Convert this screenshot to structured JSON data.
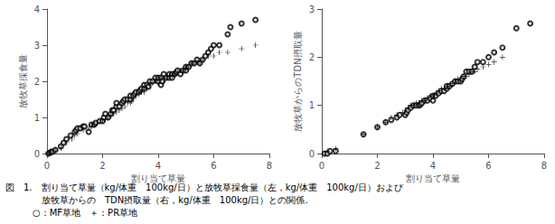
{
  "chart_data": [
    {
      "type": "scatter",
      "xlabel": "割り当て草量",
      "ylabel": "放牧草採食量",
      "xlim": [
        0,
        8
      ],
      "ylim": [
        0,
        4
      ],
      "xticks": [
        0,
        2,
        4,
        6,
        8
      ],
      "yticks": [
        0,
        1,
        2,
        3,
        4
      ],
      "grid": false,
      "annotations": [
        "図　1.　割り当て草量（kg/体重　100kg/日）と放牧草採食量（左，kg/体重　100kg/日）および",
        "　　　　放牧草からの　TDN摂取量（右，kg/体重　100kg/日）との関係.",
        "　　　○：MF草地　＋：PR草地"
      ],
      "series": [
        {
          "marker": "circle",
          "color": "#000000",
          "x": [
            0.05,
            0.1,
            0.15,
            0.2,
            0.3,
            0.5,
            0.6,
            0.7,
            0.85,
            1.0,
            1.05,
            1.1,
            1.2,
            1.3,
            1.35,
            1.5,
            1.6,
            1.7,
            1.75,
            1.9,
            2.0,
            2.05,
            2.1,
            2.2,
            2.3,
            2.35,
            2.4,
            2.5,
            2.5,
            2.6,
            2.7,
            2.75,
            2.8,
            2.9,
            3.0,
            3.0,
            3.1,
            3.15,
            3.2,
            3.3,
            3.35,
            3.4,
            3.5,
            3.5,
            3.6,
            3.65,
            3.7,
            3.8,
            3.9,
            4.0,
            4.0,
            4.1,
            4.1,
            4.15,
            4.2,
            4.3,
            4.4,
            4.4,
            4.5,
            4.5,
            4.6,
            4.65,
            4.7,
            4.8,
            4.9,
            5.0,
            5.0,
            5.1,
            5.2,
            5.3,
            5.4,
            5.5,
            5.6,
            5.7,
            5.8,
            5.9,
            6.0,
            6.2,
            6.5,
            6.6,
            7.0,
            7.5
          ],
          "values": [
            0.0,
            0.02,
            0.05,
            0.05,
            0.1,
            0.2,
            0.3,
            0.4,
            0.5,
            0.6,
            0.65,
            0.7,
            0.7,
            0.75,
            0.75,
            0.6,
            0.8,
            0.8,
            0.85,
            0.9,
            0.9,
            1.0,
            1.1,
            1.0,
            1.1,
            1.2,
            1.2,
            1.3,
            1.4,
            1.3,
            1.4,
            1.45,
            1.5,
            1.5,
            1.5,
            1.6,
            1.6,
            1.65,
            1.7,
            1.7,
            1.75,
            1.8,
            1.8,
            1.9,
            1.9,
            1.85,
            2.0,
            2.0,
            2.1,
            2.0,
            2.1,
            2.1,
            1.9,
            2.0,
            2.2,
            2.1,
            2.1,
            2.2,
            2.2,
            2.1,
            2.2,
            2.25,
            2.3,
            2.2,
            2.3,
            2.3,
            2.4,
            2.4,
            2.5,
            2.5,
            2.6,
            2.5,
            2.6,
            2.7,
            2.8,
            2.9,
            3.0,
            3.0,
            3.3,
            3.5,
            3.6,
            3.7
          ]
        },
        {
          "marker": "plus",
          "color": "#000000",
          "x": [
            0.1,
            0.2,
            0.3,
            0.5,
            0.7,
            0.9,
            1.0,
            1.1,
            1.3,
            1.5,
            1.6,
            1.7,
            1.8,
            2.0,
            2.1,
            2.2,
            2.3,
            2.4,
            2.5,
            2.6,
            2.7,
            2.8,
            2.9,
            3.0,
            3.05,
            3.1,
            3.2,
            3.3,
            3.4,
            3.5,
            3.5,
            3.6,
            3.7,
            3.8,
            3.9,
            4.0,
            4.0,
            4.1,
            4.2,
            4.3,
            4.4,
            4.5,
            4.5,
            4.6,
            4.7,
            4.8,
            4.9,
            5.0,
            5.0,
            5.1,
            5.2,
            5.3,
            5.4,
            5.5,
            5.6,
            5.8,
            6.0,
            6.2,
            6.5,
            7.0,
            7.5
          ],
          "values": [
            0.0,
            0.05,
            0.1,
            0.15,
            0.3,
            0.4,
            0.5,
            0.55,
            0.65,
            0.7,
            0.75,
            0.8,
            0.85,
            0.9,
            0.95,
            1.0,
            1.05,
            1.1,
            1.15,
            1.2,
            1.25,
            1.3,
            1.4,
            1.4,
            1.45,
            1.5,
            1.6,
            1.65,
            1.7,
            1.7,
            1.8,
            1.8,
            1.9,
            1.95,
            2.0,
            1.95,
            2.1,
            2.1,
            2.0,
            2.1,
            2.15,
            2.2,
            2.15,
            2.2,
            2.25,
            2.3,
            2.3,
            2.4,
            2.35,
            2.4,
            2.5,
            2.5,
            2.55,
            2.5,
            2.6,
            2.7,
            2.7,
            2.8,
            2.8,
            2.9,
            3.0
          ]
        }
      ]
    },
    {
      "type": "scatter",
      "xlabel": "割り当て草量",
      "ylabel": "放牧草からのTDN摂取量",
      "xlim": [
        0,
        8
      ],
      "ylim": [
        0,
        3
      ],
      "xticks": [
        0,
        2,
        4,
        6,
        8
      ],
      "yticks": [
        0,
        1,
        2,
        3
      ],
      "grid": false,
      "series": [
        {
          "marker": "circle",
          "color": "#000000",
          "x": [
            0.1,
            0.2,
            0.3,
            0.5,
            1.5,
            2.0,
            2.3,
            2.5,
            2.7,
            2.8,
            3.0,
            3.05,
            3.1,
            3.2,
            3.3,
            3.4,
            3.5,
            3.55,
            3.6,
            3.7,
            3.8,
            3.9,
            4.0,
            4.0,
            4.1,
            4.2,
            4.3,
            4.4,
            4.5,
            4.5,
            4.6,
            4.7,
            4.8,
            4.9,
            5.0,
            5.05,
            5.1,
            5.2,
            5.3,
            5.4,
            5.5,
            5.6,
            5.8,
            6.0,
            6.2,
            6.5,
            7.0,
            7.5
          ],
          "values": [
            0.0,
            0.0,
            0.05,
            0.05,
            0.4,
            0.55,
            0.65,
            0.7,
            0.75,
            0.8,
            0.8,
            0.85,
            0.9,
            0.95,
            1.0,
            1.0,
            1.0,
            1.02,
            1.05,
            1.1,
            1.1,
            1.15,
            1.1,
            1.2,
            1.2,
            1.25,
            1.3,
            1.3,
            1.35,
            1.4,
            1.4,
            1.45,
            1.5,
            1.5,
            1.5,
            1.55,
            1.6,
            1.7,
            1.7,
            1.7,
            1.8,
            1.9,
            1.9,
            2.0,
            2.1,
            2.2,
            2.6,
            2.7
          ]
        },
        {
          "marker": "plus",
          "color": "#000000",
          "x": [
            0.2,
            0.5,
            1.5,
            2.0,
            2.3,
            2.5,
            2.7,
            2.9,
            3.0,
            3.1,
            3.2,
            3.3,
            3.4,
            3.5,
            3.6,
            3.7,
            3.8,
            3.9,
            4.0,
            4.05,
            4.1,
            4.2,
            4.3,
            4.4,
            4.5,
            4.6,
            4.7,
            4.8,
            4.9,
            5.0,
            5.1,
            5.2,
            5.3,
            5.4,
            5.5,
            5.6,
            5.8,
            6.0,
            6.2,
            6.5
          ],
          "values": [
            0.05,
            0.1,
            0.4,
            0.55,
            0.65,
            0.75,
            0.8,
            0.85,
            0.9,
            0.95,
            1.0,
            1.0,
            1.05,
            1.05,
            1.1,
            1.1,
            1.15,
            1.2,
            1.2,
            1.22,
            1.25,
            1.3,
            1.35,
            1.35,
            1.4,
            1.4,
            1.45,
            1.5,
            1.55,
            1.5,
            1.6,
            1.6,
            1.65,
            1.7,
            1.7,
            1.75,
            1.8,
            1.85,
            1.9,
            2.0
          ]
        }
      ]
    }
  ]
}
